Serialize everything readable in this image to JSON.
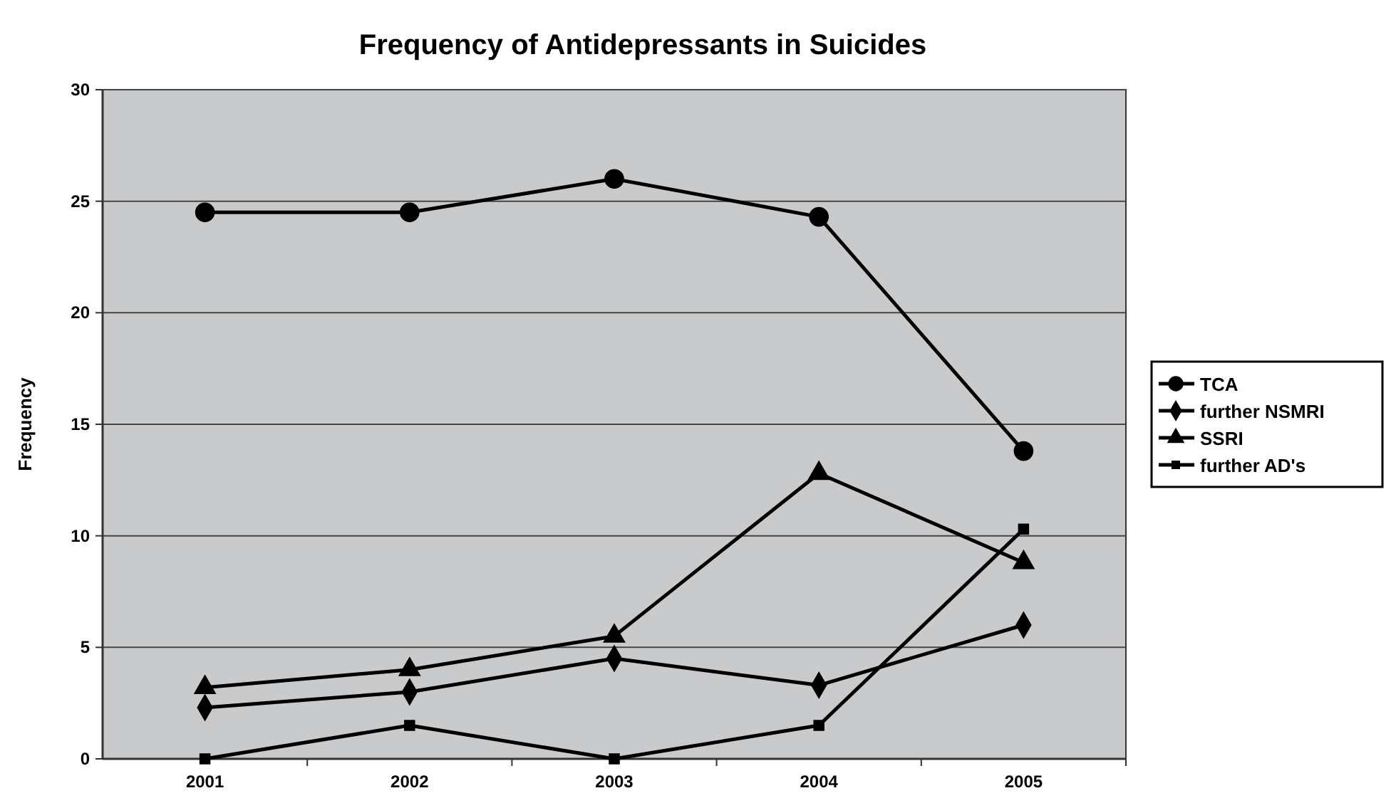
{
  "chart_data": {
    "type": "line",
    "title": "Frequency of Antidepressants in Suicides",
    "ylabel": "Frequency",
    "categories": [
      "2001",
      "2002",
      "2003",
      "2004",
      "2005"
    ],
    "ylim": [
      0,
      30
    ],
    "yticks": [
      0,
      5,
      10,
      15,
      20,
      25,
      30
    ],
    "grid": "y",
    "legend": "right",
    "series": [
      {
        "name": "TCA",
        "color": "#000000",
        "marker": "circle",
        "values": [
          24.5,
          24.5,
          26,
          24.3,
          13.8
        ]
      },
      {
        "name": "further NSMRI",
        "color": "#000000",
        "marker": "diamond",
        "values": [
          2.3,
          3,
          4.5,
          3.3,
          6
        ]
      },
      {
        "name": "SSRI",
        "color": "#000000",
        "marker": "triangle",
        "values": [
          3.2,
          4,
          5.5,
          12.8,
          8.8
        ]
      },
      {
        "name": "further AD's",
        "color": "#000000",
        "marker": "square",
        "values": [
          0,
          1.5,
          0,
          1.5,
          10.3
        ]
      }
    ]
  }
}
